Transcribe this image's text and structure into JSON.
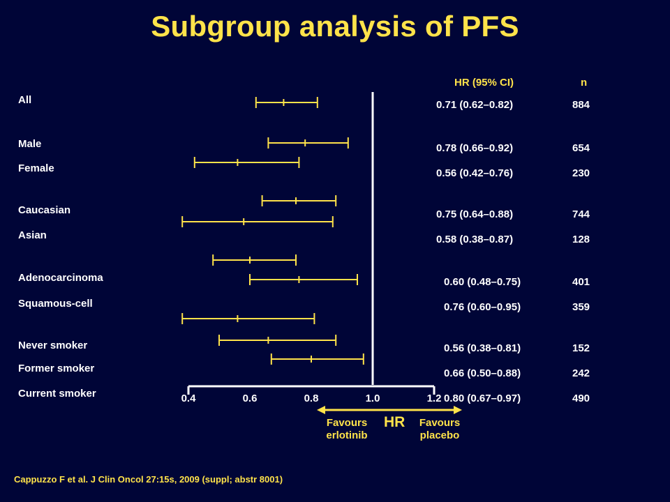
{
  "title": "Subgroup analysis of PFS",
  "headers": {
    "hr": "HR (95% CI)",
    "n": "n"
  },
  "citation": "Cappuzzo F et al. J Clin Oncol 27:15s, 2009 (suppl; abstr 8001)",
  "axis": {
    "label": "HR",
    "favour_left": [
      "Favours",
      "erlotinib"
    ],
    "favour_right": [
      "Favours",
      "placebo"
    ]
  },
  "colors": {
    "background": "#000537",
    "accent": "#ffe34a",
    "text": "#ffffff"
  },
  "chart_data": {
    "type": "forest",
    "xlim": [
      0.4,
      1.2
    ],
    "xticks": [
      "0.4",
      "0.6",
      "0.8",
      "1.0",
      "1.2"
    ],
    "reference_line": 1.0,
    "subgroups": [
      {
        "label": "All",
        "hr_text": "0.71 (0.62–0.82)",
        "n": "884"
      },
      {
        "label": "Male",
        "hr_text": "0.78 (0.66–0.92)",
        "n": "654"
      },
      {
        "label": "Female",
        "hr_text": "0.56 (0.42–0.76)",
        "n": "230"
      },
      {
        "label": "Caucasian",
        "hr_text": "0.75 (0.64–0.88)",
        "n": "744"
      },
      {
        "label": "Asian",
        "hr_text": "0.58 (0.38–0.87)",
        "n": "128"
      },
      {
        "label": "Adenocarcinoma",
        "hr_text": "0.60 (0.48–0.75)",
        "n": "401"
      },
      {
        "label": "Squamous-cell",
        "hr_text": "0.76 (0.60–0.95)",
        "n": "359"
      },
      {
        "label": "Never smoker",
        "hr_text": "0.56 (0.38–0.81)",
        "n": "152"
      },
      {
        "label": "Former smoker",
        "hr_text": "0.66 (0.50–0.88)",
        "n": "242"
      },
      {
        "label": "Current smoker",
        "hr_text": "0.80 (0.67–0.97)",
        "n": "490"
      }
    ],
    "bars": [
      {
        "point": 0.71,
        "low": 0.62,
        "high": 0.82
      },
      {
        "point": 0.78,
        "low": 0.66,
        "high": 0.92
      },
      {
        "point": 0.56,
        "low": 0.42,
        "high": 0.76
      },
      {
        "point": 0.75,
        "low": 0.64,
        "high": 0.88
      },
      {
        "point": 0.58,
        "low": 0.38,
        "high": 0.87
      },
      {
        "point": 0.6,
        "low": 0.48,
        "high": 0.75
      },
      {
        "point": 0.76,
        "low": 0.6,
        "high": 0.95
      },
      {
        "point": 0.56,
        "low": 0.38,
        "high": 0.81
      },
      {
        "point": 0.66,
        "low": 0.5,
        "high": 0.88
      },
      {
        "point": 0.8,
        "low": 0.67,
        "high": 0.97
      }
    ]
  }
}
